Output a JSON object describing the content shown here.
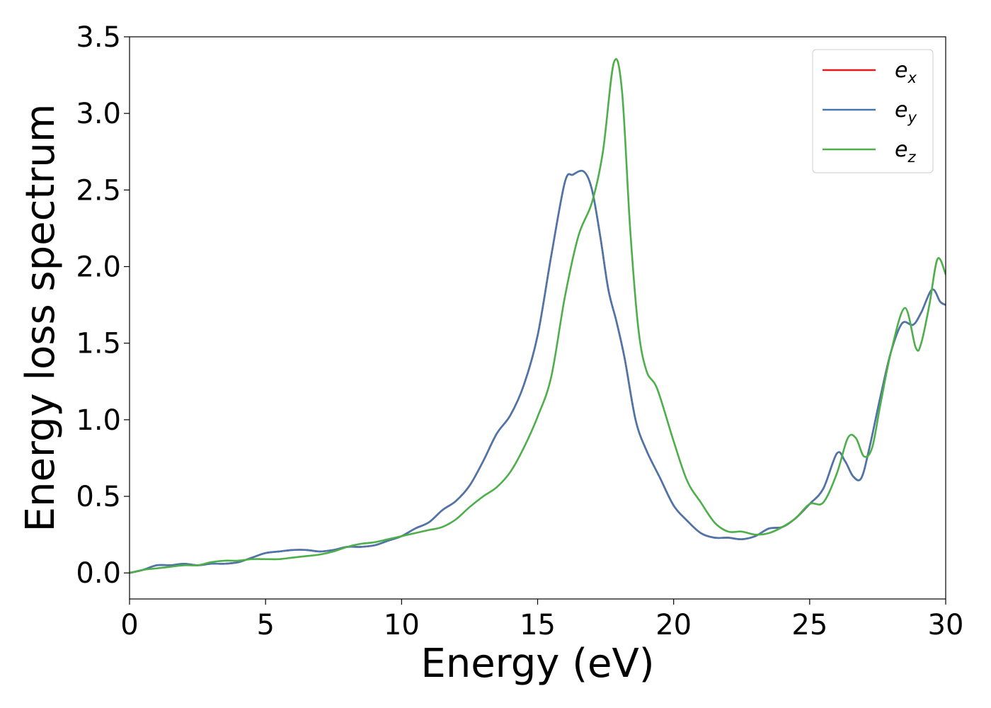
{
  "chart_data": {
    "type": "line",
    "xlabel": "Energy (eV)",
    "ylabel": "Energy loss spectrum",
    "xlim": [
      0,
      30
    ],
    "ylim": [
      -0.17,
      3.5
    ],
    "xticks": [
      0,
      5,
      10,
      15,
      20,
      25,
      30
    ],
    "xtick_labels": [
      "0",
      "5",
      "10",
      "15",
      "20",
      "25",
      "30"
    ],
    "yticks": [
      0.0,
      0.5,
      1.0,
      1.5,
      2.0,
      2.5,
      3.0,
      3.5
    ],
    "ytick_labels": [
      "0.0",
      "0.5",
      "1.0",
      "1.5",
      "2.0",
      "2.5",
      "3.0",
      "3.5"
    ],
    "grid": false,
    "legend_position": "top-right",
    "series": [
      {
        "name": "e_x",
        "label_base": "e",
        "label_sub": "x",
        "color": "#e41a1c",
        "x": [
          0,
          0.5,
          1.0,
          1.5,
          2.0,
          2.5,
          3.0,
          3.5,
          4.0,
          4.5,
          5.0,
          5.5,
          6.0,
          6.5,
          7.0,
          7.5,
          8.0,
          8.5,
          9.0,
          9.5,
          10.0,
          10.5,
          11.0,
          11.5,
          12.0,
          12.5,
          13.0,
          13.5,
          14.0,
          14.5,
          15.0,
          15.5,
          16.0,
          16.3,
          16.7,
          17.0,
          17.3,
          17.6,
          17.9,
          18.2,
          18.6,
          19.0,
          19.5,
          20.0,
          20.5,
          21.0,
          21.5,
          22.0,
          22.5,
          23.0,
          23.5,
          24.0,
          24.5,
          25.0,
          25.5,
          26.0,
          26.3,
          26.6,
          26.9,
          27.2,
          27.6,
          28.0,
          28.4,
          28.8,
          29.1,
          29.5,
          29.8,
          30.0
        ],
        "y": [
          0.0,
          0.02,
          0.05,
          0.05,
          0.06,
          0.05,
          0.06,
          0.06,
          0.07,
          0.1,
          0.13,
          0.14,
          0.15,
          0.15,
          0.14,
          0.15,
          0.17,
          0.17,
          0.18,
          0.21,
          0.24,
          0.29,
          0.33,
          0.41,
          0.47,
          0.57,
          0.73,
          0.91,
          1.03,
          1.23,
          1.55,
          2.07,
          2.55,
          2.6,
          2.62,
          2.5,
          2.2,
          1.85,
          1.64,
          1.4,
          1.0,
          0.8,
          0.62,
          0.44,
          0.34,
          0.26,
          0.23,
          0.23,
          0.22,
          0.24,
          0.29,
          0.3,
          0.36,
          0.45,
          0.55,
          0.78,
          0.73,
          0.63,
          0.62,
          0.82,
          1.15,
          1.45,
          1.63,
          1.62,
          1.7,
          1.85,
          1.77,
          1.75
        ]
      },
      {
        "name": "e_y",
        "label_base": "e",
        "label_sub": "y",
        "color": "#4a77ab",
        "x": [
          0,
          0.5,
          1.0,
          1.5,
          2.0,
          2.5,
          3.0,
          3.5,
          4.0,
          4.5,
          5.0,
          5.5,
          6.0,
          6.5,
          7.0,
          7.5,
          8.0,
          8.5,
          9.0,
          9.5,
          10.0,
          10.5,
          11.0,
          11.5,
          12.0,
          12.5,
          13.0,
          13.5,
          14.0,
          14.5,
          15.0,
          15.5,
          16.0,
          16.3,
          16.7,
          17.0,
          17.3,
          17.6,
          17.9,
          18.2,
          18.6,
          19.0,
          19.5,
          20.0,
          20.5,
          21.0,
          21.5,
          22.0,
          22.5,
          23.0,
          23.5,
          24.0,
          24.5,
          25.0,
          25.5,
          26.0,
          26.3,
          26.6,
          26.9,
          27.2,
          27.6,
          28.0,
          28.4,
          28.8,
          29.1,
          29.5,
          29.8,
          30.0
        ],
        "y": [
          0.0,
          0.02,
          0.05,
          0.05,
          0.06,
          0.05,
          0.06,
          0.06,
          0.07,
          0.1,
          0.13,
          0.14,
          0.15,
          0.15,
          0.14,
          0.15,
          0.17,
          0.17,
          0.18,
          0.21,
          0.24,
          0.29,
          0.33,
          0.41,
          0.47,
          0.57,
          0.73,
          0.91,
          1.03,
          1.23,
          1.55,
          2.07,
          2.55,
          2.6,
          2.62,
          2.5,
          2.2,
          1.85,
          1.64,
          1.4,
          1.0,
          0.8,
          0.62,
          0.44,
          0.34,
          0.26,
          0.23,
          0.23,
          0.22,
          0.24,
          0.29,
          0.3,
          0.36,
          0.45,
          0.55,
          0.78,
          0.73,
          0.63,
          0.62,
          0.82,
          1.15,
          1.45,
          1.63,
          1.62,
          1.7,
          1.85,
          1.77,
          1.75
        ]
      },
      {
        "name": "e_z",
        "label_base": "e",
        "label_sub": "z",
        "color": "#4daf4a",
        "x": [
          0,
          0.5,
          1.0,
          1.5,
          2.0,
          2.5,
          3.0,
          3.5,
          4.0,
          4.5,
          5.0,
          5.5,
          6.0,
          6.5,
          7.0,
          7.5,
          8.0,
          8.5,
          9.0,
          9.5,
          10.0,
          10.5,
          11.0,
          11.5,
          12.0,
          12.5,
          13.0,
          13.5,
          14.0,
          14.5,
          15.0,
          15.5,
          16.0,
          16.5,
          17.0,
          17.4,
          17.8,
          18.1,
          18.4,
          18.7,
          19.0,
          19.4,
          20.0,
          20.5,
          21.0,
          21.5,
          22.0,
          22.5,
          23.0,
          23.5,
          24.0,
          24.5,
          25.0,
          25.5,
          26.0,
          26.4,
          26.7,
          27.0,
          27.3,
          27.6,
          28.0,
          28.5,
          28.9,
          29.1,
          29.4,
          29.7,
          30.0
        ],
        "y": [
          0.0,
          0.02,
          0.03,
          0.04,
          0.05,
          0.05,
          0.07,
          0.08,
          0.08,
          0.09,
          0.09,
          0.09,
          0.1,
          0.11,
          0.12,
          0.14,
          0.17,
          0.19,
          0.2,
          0.22,
          0.24,
          0.26,
          0.28,
          0.3,
          0.35,
          0.43,
          0.5,
          0.56,
          0.66,
          0.82,
          1.02,
          1.28,
          1.8,
          2.2,
          2.42,
          2.75,
          3.33,
          3.15,
          2.25,
          1.6,
          1.32,
          1.2,
          0.86,
          0.6,
          0.46,
          0.33,
          0.27,
          0.27,
          0.25,
          0.26,
          0.3,
          0.36,
          0.45,
          0.46,
          0.65,
          0.88,
          0.88,
          0.76,
          0.82,
          1.1,
          1.45,
          1.73,
          1.47,
          1.5,
          1.75,
          2.05,
          1.95
        ]
      }
    ]
  }
}
